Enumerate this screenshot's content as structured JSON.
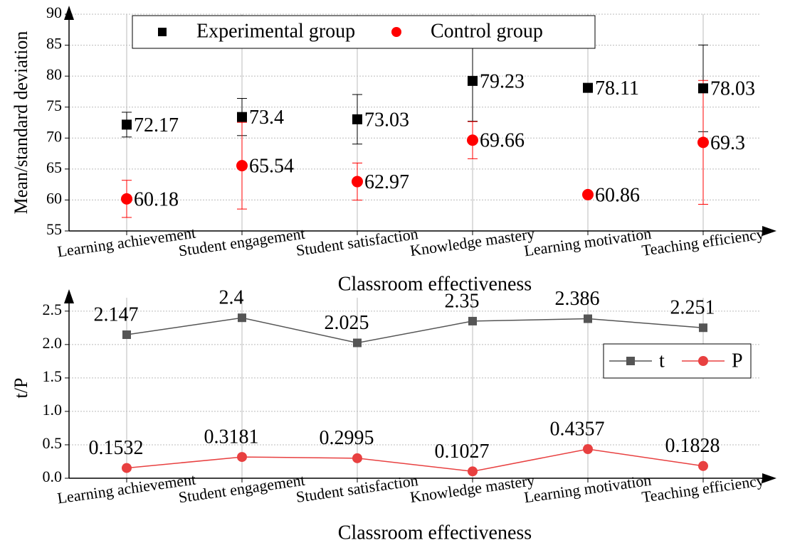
{
  "chart_data": [
    {
      "type": "point",
      "y_label": "Mean/standard deviation",
      "x_label": "Classroom effectiveness",
      "categories": [
        "Learning achievement",
        "Student engagement",
        "Student satisfaction",
        "Knowledge mastery",
        "Learning motivation",
        "Teaching efficiency"
      ],
      "series": [
        {
          "name": "Experimental group",
          "color": "#000000",
          "marker": "square",
          "values": [
            72.17,
            73.4,
            73.03,
            79.23,
            78.11,
            78.03
          ],
          "errors": [
            2,
            3,
            4,
            6.5,
            0,
            7
          ]
        },
        {
          "name": "Control group",
          "color": "#ff0000",
          "marker": "circle",
          "values": [
            60.18,
            65.54,
            62.97,
            69.66,
            60.86,
            69.3
          ],
          "errors": [
            3,
            7,
            3,
            3,
            0,
            10
          ]
        }
      ],
      "ylim": [
        55,
        90
      ],
      "yticks": [
        55,
        60,
        65,
        70,
        75,
        80,
        85,
        90
      ],
      "grid": true,
      "legend": "top"
    },
    {
      "type": "line",
      "y_label": "t/P",
      "x_label": "Classroom effectiveness",
      "categories": [
        "Learning achievement",
        "Student engagement",
        "Student satisfaction",
        "Knowledge mastery",
        "Learning motivation",
        "Teaching efficiency"
      ],
      "series": [
        {
          "name": "t",
          "color": "#555555",
          "marker": "square",
          "values": [
            2.147,
            2.4,
            2.025,
            2.35,
            2.386,
            2.251
          ]
        },
        {
          "name": "P",
          "color": "#e84040",
          "marker": "circle",
          "values": [
            0.1532,
            0.3181,
            0.2995,
            0.1027,
            0.4357,
            0.1828
          ]
        }
      ],
      "ylim": [
        0,
        2.7
      ],
      "yticks": [
        {
          "value": 0,
          "label": "0.0"
        },
        {
          "value": 0.5,
          "label": "0.5"
        },
        {
          "value": 1,
          "label": "1.0"
        },
        {
          "value": 1.5,
          "label": "1.5"
        },
        {
          "value": 2,
          "label": "2.0"
        },
        {
          "value": 2.5,
          "label": "2.5"
        }
      ],
      "grid": true,
      "legend": "right"
    }
  ]
}
